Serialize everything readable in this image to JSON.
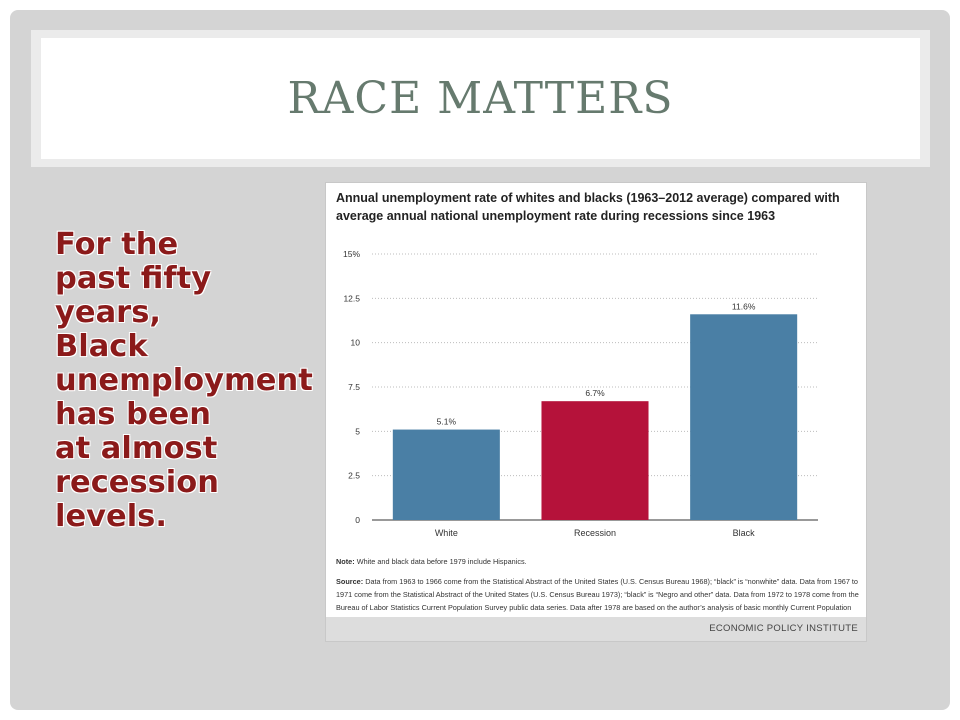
{
  "slide": {
    "title": "RACE MATTERS",
    "body": "For the past fifty years, Black unemployment has been at almost recession levels."
  },
  "chart_data": {
    "type": "bar",
    "title": "Annual unemployment rate of whites and blacks (1963–2012 average) compared with average annual national unemployment rate during recessions since 1963",
    "categories": [
      "White",
      "Recession",
      "Black"
    ],
    "values": [
      5.1,
      6.7,
      11.6
    ],
    "value_labels": [
      "5.1%",
      "6.7%",
      "11.6%"
    ],
    "bar_colors": [
      "#4a7fa5",
      "#b5123a",
      "#4a7fa5"
    ],
    "ylim": [
      0,
      15
    ],
    "yticks": [
      0,
      2.5,
      5,
      7.5,
      10,
      12.5,
      15
    ],
    "ytick_labels": [
      "0",
      "2.5",
      "5",
      "7.5",
      "10",
      "12.5",
      "15%"
    ],
    "xlabel": "",
    "ylabel": "",
    "grid": true,
    "note_label": "Note:",
    "note": "White and black data before 1979 include Hispanics.",
    "source_label": "Source:",
    "source": "Data from 1963 to 1966 come from the Statistical Abstract of the United States (U.S. Census Bureau 1968); “black” is “nonwhite” data. Data from 1967 to 1971 come from the Statistical Abstract of the United States (U.S. Census Bureau 1973); “black” is “Negro and other” data. Data from 1972 to 1978 come from the Bureau of Labor Statistics Current Population Survey public data series. Data after 1978 are based on the author’s analysis of basic monthly Current Population Survey microdata.",
    "brand": "ECONOMIC POLICY INSTITUTE"
  }
}
